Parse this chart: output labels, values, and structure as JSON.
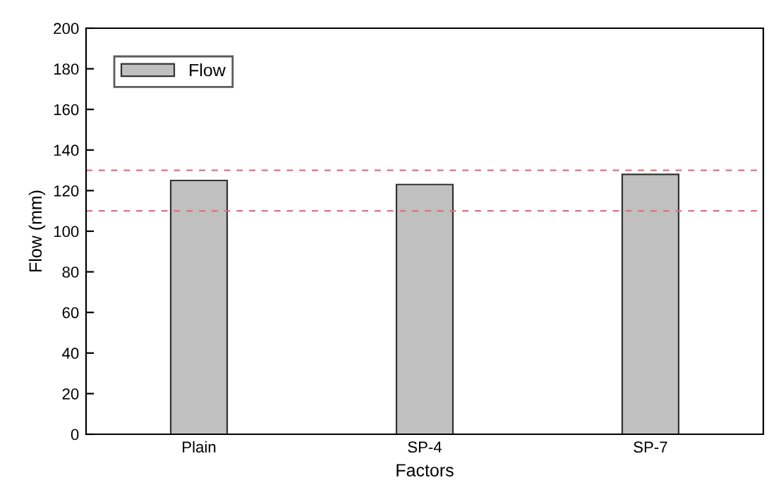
{
  "chart_data": {
    "type": "bar",
    "xlabel": "Factors",
    "ylabel": "Flow (mm)",
    "categories": [
      "Plain",
      "SP-4",
      "SP-7"
    ],
    "series": [
      {
        "name": "Flow",
        "color": "#c0c0c0",
        "values": [
          125,
          123,
          128
        ]
      }
    ],
    "ylim": [
      0,
      200
    ],
    "yticks": [
      0,
      20,
      40,
      60,
      80,
      100,
      120,
      140,
      160,
      180,
      200
    ],
    "ref_lines": [
      {
        "axis": "y",
        "value": 130,
        "color": "#e07080",
        "line_style": "dashed"
      },
      {
        "axis": "y",
        "value": 110,
        "color": "#e07080",
        "line_style": "dashed"
      }
    ],
    "legend": "top left",
    "grid": false
  }
}
